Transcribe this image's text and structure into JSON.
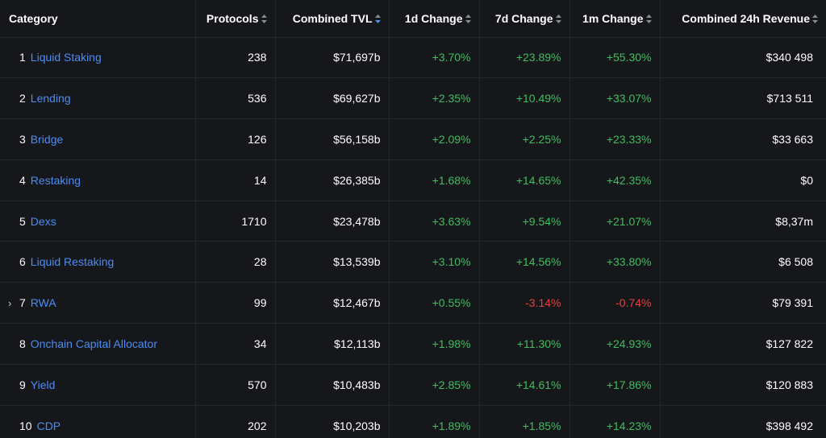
{
  "headers": {
    "category": "Category",
    "protocols": "Protocols",
    "tvl": "Combined TVL",
    "d1": "1d Change",
    "d7": "7d Change",
    "m1": "1m Change",
    "revenue": "Combined 24h Revenue"
  },
  "colors": {
    "background": "#16171b",
    "link": "#4c8cf2",
    "positive": "#3dbf5d",
    "negative": "#e3413f",
    "sort_active": "#4c8cf2",
    "sort_inactive": "#8a8d95"
  },
  "rows": [
    {
      "rank": "1",
      "expand": "",
      "name": "Liquid Staking",
      "protocols": "238",
      "tvl": "$71,697b",
      "d1": "+3.70%",
      "d7": "+23.89%",
      "m1": "+55.30%",
      "revenue": "$340 498"
    },
    {
      "rank": "2",
      "expand": "",
      "name": "Lending",
      "protocols": "536",
      "tvl": "$69,627b",
      "d1": "+2.35%",
      "d7": "+10.49%",
      "m1": "+33.07%",
      "revenue": "$713 511"
    },
    {
      "rank": "3",
      "expand": "",
      "name": "Bridge",
      "protocols": "126",
      "tvl": "$56,158b",
      "d1": "+2.09%",
      "d7": "+2.25%",
      "m1": "+23.33%",
      "revenue": "$33 663"
    },
    {
      "rank": "4",
      "expand": "",
      "name": "Restaking",
      "protocols": "14",
      "tvl": "$26,385b",
      "d1": "+1.68%",
      "d7": "+14.65%",
      "m1": "+42.35%",
      "revenue": "$0"
    },
    {
      "rank": "5",
      "expand": "",
      "name": "Dexs",
      "protocols": "1710",
      "tvl": "$23,478b",
      "d1": "+3.63%",
      "d7": "+9.54%",
      "m1": "+21.07%",
      "revenue": "$8,37m"
    },
    {
      "rank": "6",
      "expand": "",
      "name": "Liquid Restaking",
      "protocols": "28",
      "tvl": "$13,539b",
      "d1": "+3.10%",
      "d7": "+14.56%",
      "m1": "+33.80%",
      "revenue": "$6 508"
    },
    {
      "rank": "7",
      "expand": "›",
      "name": "RWA",
      "protocols": "99",
      "tvl": "$12,467b",
      "d1": "+0.55%",
      "d7": "-3.14%",
      "m1": "-0.74%",
      "revenue": "$79 391"
    },
    {
      "rank": "8",
      "expand": "",
      "name": "Onchain Capital Allocator",
      "protocols": "34",
      "tvl": "$12,113b",
      "d1": "+1.98%",
      "d7": "+11.30%",
      "m1": "+24.93%",
      "revenue": "$127 822"
    },
    {
      "rank": "9",
      "expand": "",
      "name": "Yield",
      "protocols": "570",
      "tvl": "$10,483b",
      "d1": "+2.85%",
      "d7": "+14.61%",
      "m1": "+17.86%",
      "revenue": "$120 883"
    },
    {
      "rank": "10",
      "expand": "",
      "name": "CDP",
      "protocols": "202",
      "tvl": "$10,203b",
      "d1": "+1.89%",
      "d7": "+1.85%",
      "m1": "+14.23%",
      "revenue": "$398 492"
    }
  ]
}
